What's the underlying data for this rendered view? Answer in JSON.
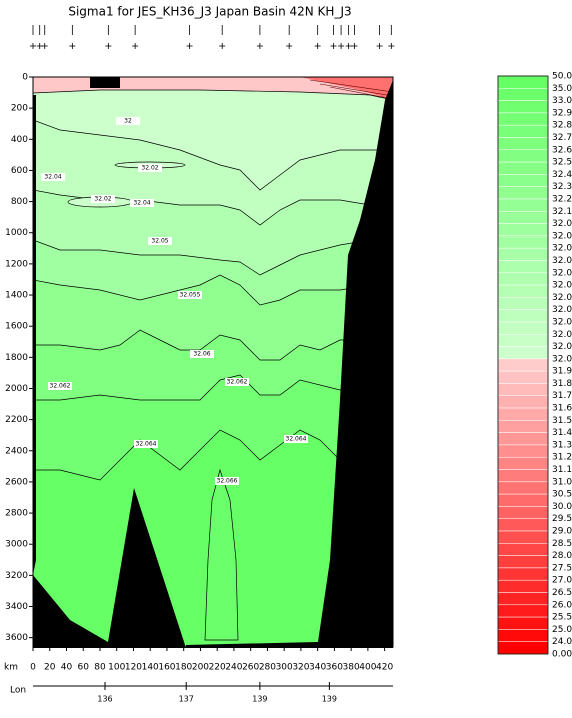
{
  "chart_data": {
    "type": "contour",
    "title": "Sigma1 for JES_KH36_J3 Japan Basin 42N KH_J3",
    "x_label": "km",
    "lon_label": "Lon",
    "xlim": [
      0,
      430
    ],
    "ylim": [
      0,
      3660
    ],
    "xticks": [
      0,
      20,
      40,
      60,
      80,
      100,
      120,
      140,
      160,
      180,
      200,
      220,
      240,
      260,
      280,
      300,
      320,
      340,
      360,
      380,
      400,
      420
    ],
    "yticks": [
      0,
      200,
      400,
      600,
      800,
      1000,
      1200,
      1400,
      1600,
      1800,
      2000,
      2200,
      2400,
      2600,
      2800,
      3000,
      3200,
      3400,
      3600
    ],
    "lon_ticks": [
      {
        "value": 86,
        "label": "136"
      },
      {
        "value": 183,
        "label": "137"
      },
      {
        "value": 271,
        "label": "139"
      },
      {
        "value": 354,
        "label": "139"
      }
    ],
    "stations_km": [
      0,
      8,
      14,
      47,
      90,
      122,
      187,
      226,
      271,
      306,
      340,
      359,
      368,
      377,
      384,
      414,
      428
    ],
    "contour_labels": [
      "32",
      "32.02",
      "32.02",
      "32.04",
      "32.04",
      "32.05",
      "32.055",
      "32.06",
      "32.062",
      "32.062",
      "32.064",
      "32.064",
      "32.066"
    ],
    "colorbar": {
      "levels": [
        "50.000",
        "35.000",
        "33.000",
        "32.900",
        "32.800",
        "32.700",
        "32.600",
        "32.500",
        "32.400",
        "32.300",
        "32.200",
        "32.100",
        "32.080",
        "32.070",
        "32.068",
        "32.066",
        "32.064",
        "32.062",
        "32.060",
        "32.050",
        "32.040",
        "32.030",
        "32.020",
        "32.000",
        "31.900",
        "31.800",
        "31.700",
        "31.600",
        "31.500",
        "31.400",
        "31.300",
        "31.200",
        "31.100",
        "31.000",
        "30.500",
        "30.000",
        "29.500",
        "29.000",
        "28.500",
        "28.000",
        "27.500",
        "27.000",
        "26.500",
        "26.000",
        "25.500",
        "25.000",
        "24.000",
        "0.000"
      ],
      "colors": [
        "#66ff66",
        "#6bff6b",
        "#6fff6f",
        "#74ff74",
        "#79ff79",
        "#7dff7d",
        "#82ff82",
        "#87ff87",
        "#8bff8b",
        "#90ff90",
        "#94ff94",
        "#99ff99",
        "#9eff9e",
        "#a2ffa2",
        "#a7ffa7",
        "#acffac",
        "#b0ffb0",
        "#b5ffb5",
        "#b9ffb9",
        "#beffbe",
        "#c3ffc3",
        "#c7ffc7",
        "#ccffcc",
        "#ffcccc",
        "#ffc3c3",
        "#ffbaba",
        "#ffb1b1",
        "#ffa9a9",
        "#ffa0a0",
        "#ff9797",
        "#ff8e8e",
        "#ff8585",
        "#ff7c7c",
        "#ff7373",
        "#ff6a6a",
        "#ff6262",
        "#ff5959",
        "#ff5050",
        "#ff4747",
        "#ff3e3e",
        "#ff3535",
        "#ff2c2c",
        "#ff2323",
        "#ff1b1b",
        "#ff1212",
        "#ff0909",
        "#ff0000"
      ]
    }
  }
}
